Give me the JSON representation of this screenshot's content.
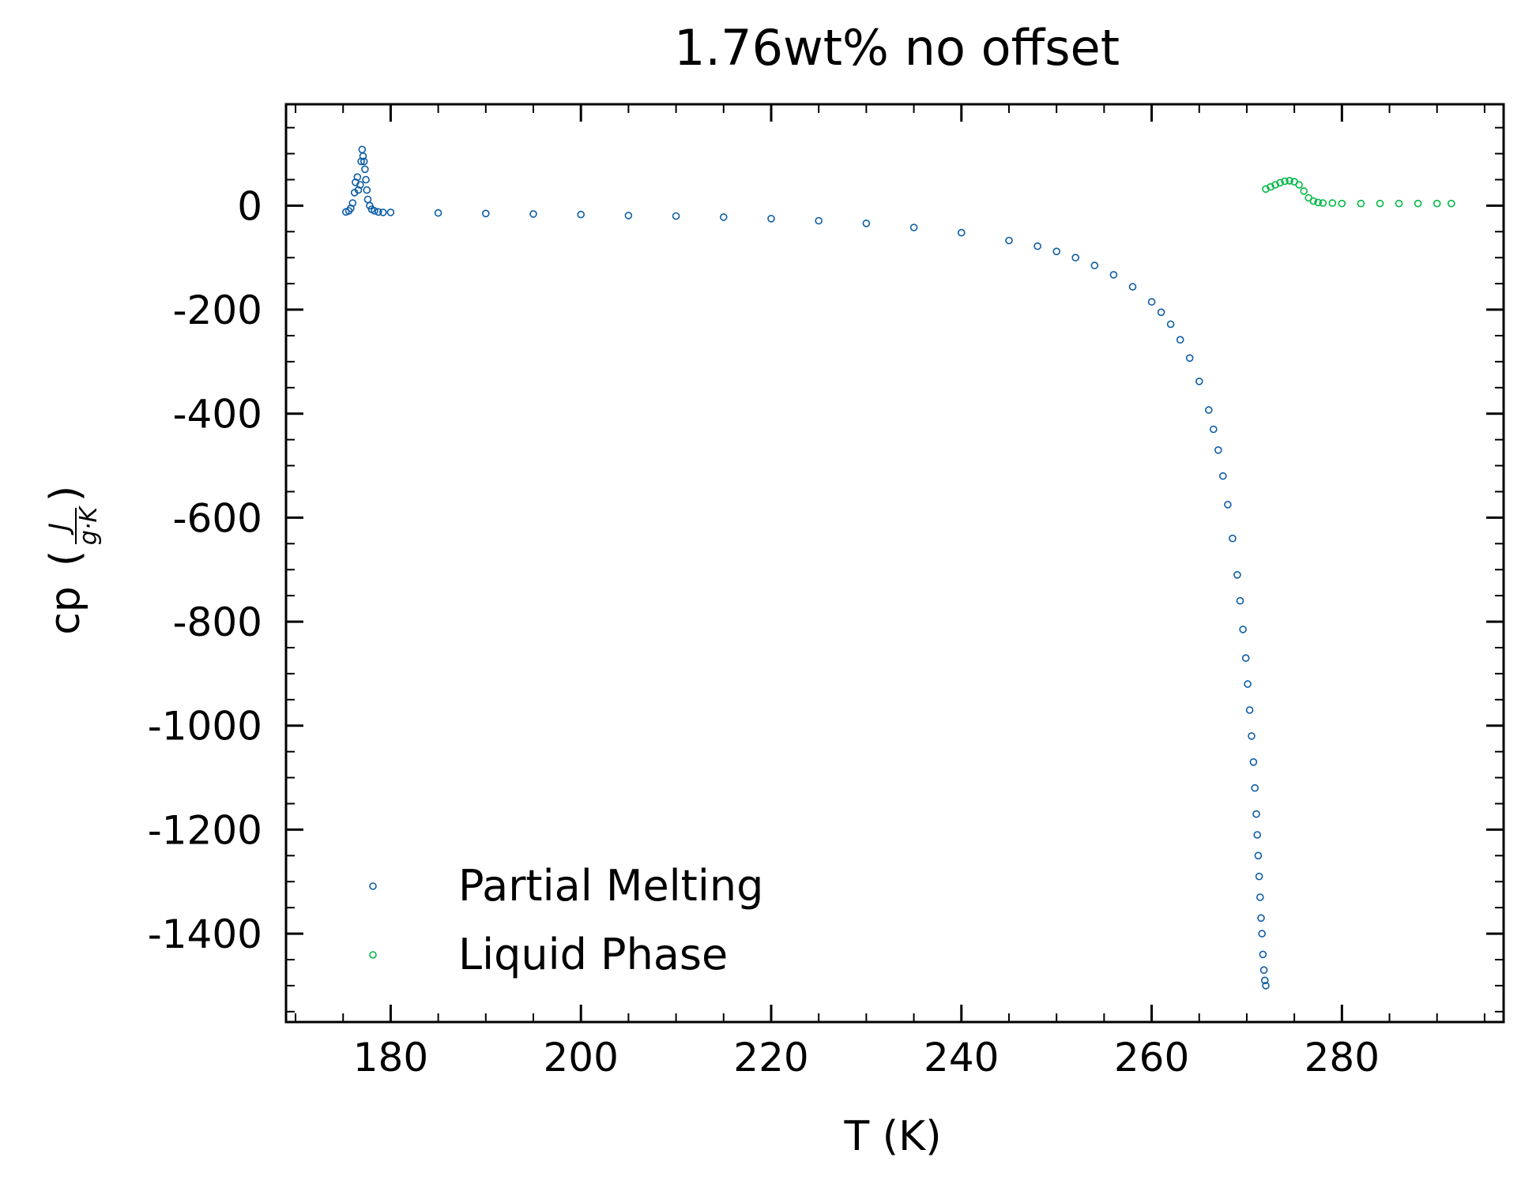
{
  "chart_data": {
    "type": "scatter",
    "title": "1.76wt% no offset",
    "xlabel": "T (K)",
    "ylabel": {
      "prefix": "cp",
      "numerator": "J",
      "denominator": "g·K"
    },
    "xlim": [
      169,
      297
    ],
    "ylim": [
      -1570,
      195
    ],
    "x_ticks": [
      180,
      200,
      220,
      240,
      260,
      280
    ],
    "x_tick_labels": [
      "180",
      "200",
      "220",
      "240",
      "260",
      "280"
    ],
    "y_ticks": [
      0,
      -200,
      -400,
      -600,
      -800,
      -1000,
      -1200,
      -1400
    ],
    "y_tick_labels": [
      "0",
      "-200",
      "-400",
      "-600",
      "-800",
      "-1000",
      "-1200",
      "-1400"
    ],
    "x_minor_step": 5,
    "y_minor_step": 50,
    "grid": false,
    "legend": {
      "position": "bottom-left",
      "frame": false
    },
    "series": [
      {
        "name": "Partial Melting",
        "color": "#0c5da5",
        "marker": "open-circle",
        "x": [
          175.3,
          175.6,
          175.8,
          176.0,
          176.2,
          176.3,
          176.5,
          176.6,
          176.8,
          176.9,
          177.0,
          177.1,
          177.2,
          177.3,
          177.4,
          177.5,
          177.6,
          177.8,
          178.0,
          178.3,
          178.7,
          179.2,
          180,
          185,
          190,
          195,
          200,
          205,
          210,
          215,
          220,
          225,
          230,
          235,
          240,
          245,
          248,
          250,
          252,
          254,
          256,
          258,
          260,
          261,
          262,
          263,
          264,
          265,
          266,
          266.5,
          267,
          267.5,
          268,
          268.5,
          269,
          269.3,
          269.6,
          269.9,
          270.1,
          270.3,
          270.5,
          270.7,
          270.85,
          271.0,
          271.1,
          271.2,
          271.3,
          271.4,
          271.5,
          271.6,
          271.7,
          271.8,
          271.9,
          272.0
        ],
        "y": [
          -12,
          -10,
          -5,
          5,
          25,
          45,
          55,
          30,
          40,
          85,
          108,
          95,
          85,
          70,
          50,
          30,
          12,
          0,
          -7,
          -10,
          -12,
          -13,
          -13,
          -14,
          -15,
          -16,
          -17,
          -19,
          -20,
          -22,
          -25,
          -29,
          -34,
          -42,
          -52,
          -67,
          -78,
          -88,
          -100,
          -115,
          -133,
          -156,
          -185,
          -205,
          -228,
          -258,
          -293,
          -338,
          -393,
          -430,
          -470,
          -520,
          -575,
          -640,
          -710,
          -760,
          -815,
          -870,
          -920,
          -970,
          -1020,
          -1070,
          -1120,
          -1170,
          -1210,
          -1250,
          -1290,
          -1330,
          -1370,
          -1400,
          -1440,
          -1470,
          -1490,
          -1500
        ]
      },
      {
        "name": "Liquid Phase",
        "color": "#00b945",
        "marker": "open-circle",
        "x": [
          272.0,
          272.5,
          273.0,
          273.5,
          274.0,
          274.5,
          275.0,
          275.5,
          276.0,
          276.5,
          277.0,
          277.5,
          278.0,
          279,
          280,
          282,
          284,
          286,
          288,
          290,
          291.5
        ],
        "y": [
          32,
          36,
          40,
          44,
          47,
          48,
          46,
          40,
          28,
          15,
          9,
          6,
          5,
          5,
          4,
          4,
          4,
          4,
          4,
          4,
          4
        ]
      }
    ]
  }
}
